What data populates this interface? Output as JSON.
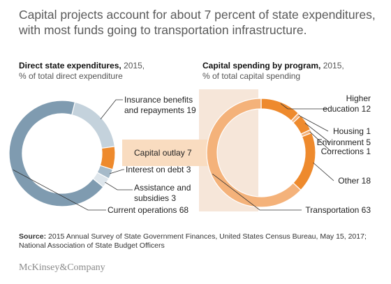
{
  "title": "Capital projects account for about 7 percent of state expenditures, with most funds going to transportation infrastructure.",
  "left_chart": {
    "title_bold": "Direct state expenditures,",
    "title_year": "2015,",
    "subtitle": "% of total direct expenditure"
  },
  "right_chart": {
    "title_bold": "Capital spending by program,",
    "title_year": "2015,",
    "subtitle": "% of total capital spending"
  },
  "colors": {
    "operations": "#7f9bb0",
    "insurance": "#c4d2dc",
    "assistance": "#a6bac9",
    "interest": "#dde5eb",
    "capital": "#ee8a2d",
    "capital_light": "#f4b27a",
    "band": "#f9dcc0",
    "band_shade": "#f6e6d9",
    "leader": "#333333"
  },
  "chart_data": [
    {
      "type": "pie",
      "donut": true,
      "title": "Direct state expenditures, 2015",
      "subtitle": "% of total direct expenditure",
      "slices": [
        {
          "label": "Insurance benefits and repayments",
          "value": 19,
          "label_lines": [
            "Insurance benefits",
            "and repayments 19"
          ]
        },
        {
          "label": "Capital outlay",
          "value": 7,
          "label_lines": [
            "Capital outlay 7"
          ]
        },
        {
          "label": "Interest on debt",
          "value": 3,
          "label_lines": [
            "Interest on debt 3"
          ]
        },
        {
          "label": "Assistance and subsidies",
          "value": 3,
          "label_lines": [
            "Assistance and",
            "subsidies 3"
          ]
        },
        {
          "label": "Current operations",
          "value": 68,
          "label_lines": [
            "Current operations 68"
          ]
        }
      ]
    },
    {
      "type": "pie",
      "donut": true,
      "title": "Capital spending by program, 2015",
      "subtitle": "% of total capital spending",
      "slices": [
        {
          "label": "Higher education",
          "value": 12,
          "label_lines": [
            "Higher",
            "education 12"
          ]
        },
        {
          "label": "Housing",
          "value": 1,
          "label_lines": [
            "Housing 1"
          ]
        },
        {
          "label": "Environment",
          "value": 5,
          "label_lines": [
            "Environment 5"
          ]
        },
        {
          "label": "Corrections",
          "value": 1,
          "label_lines": [
            "Corrections 1"
          ]
        },
        {
          "label": "Other",
          "value": 18,
          "label_lines": [
            "Other 18"
          ]
        },
        {
          "label": "Transportation",
          "value": 63,
          "label_lines": [
            "Transportation 63"
          ]
        }
      ]
    }
  ],
  "source": {
    "label": "Source:",
    "text": "2015 Annual Survey of State Government Finances, United States Census Bureau, May 15, 2017; National Association of State Budget Officers"
  },
  "logo": "McKinsey&Company"
}
